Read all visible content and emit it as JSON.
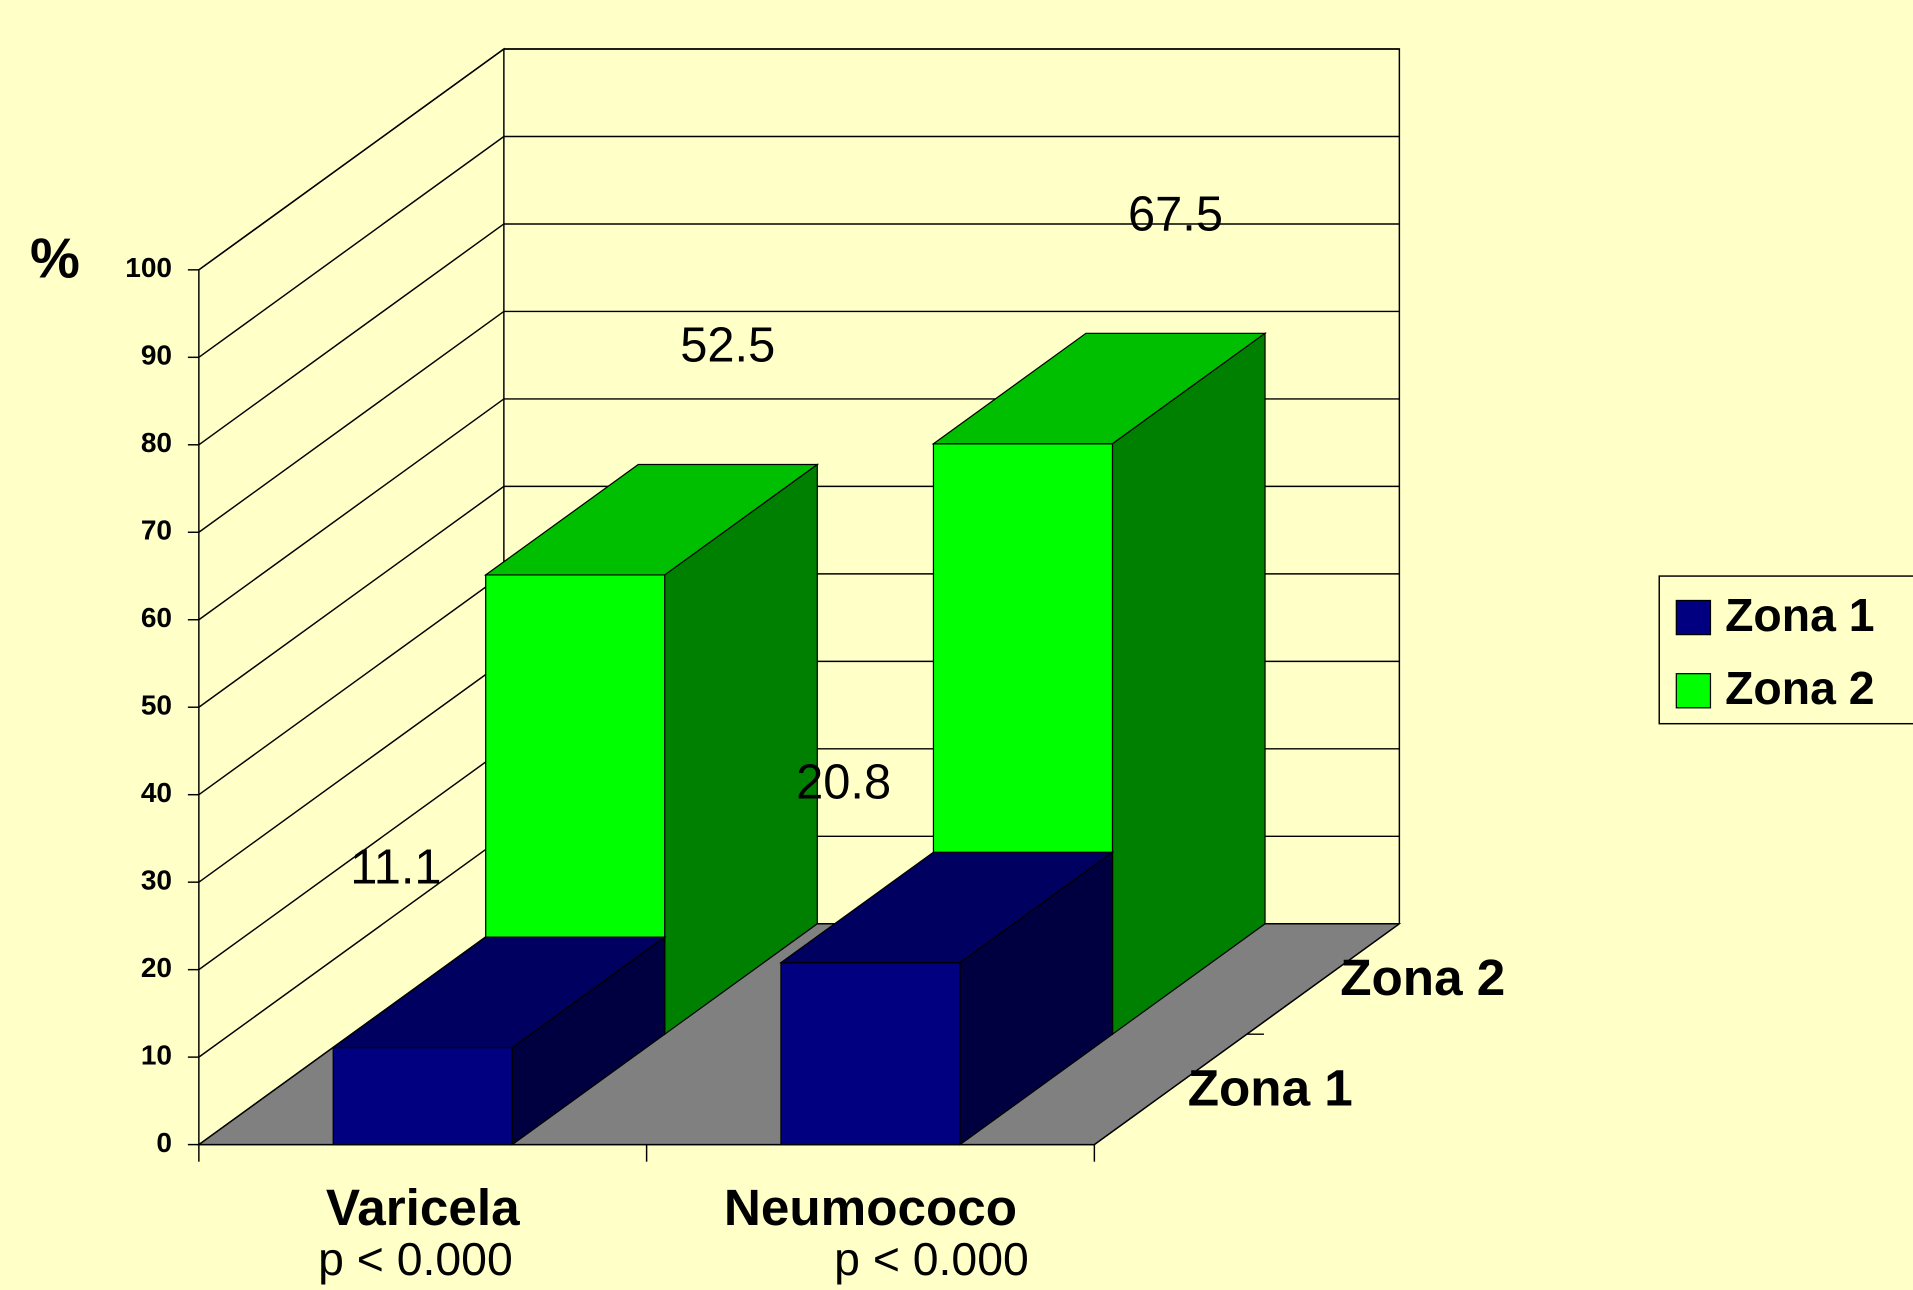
{
  "chart_data": {
    "type": "bar3d",
    "ylabel": "%",
    "categories": [
      "Varicela",
      "Neumococo"
    ],
    "category_notes": [
      "p < 0.000",
      "p < 0.000"
    ],
    "series": [
      {
        "name": "Zona 1",
        "color": "#000080",
        "values": [
          11.1,
          20.8
        ]
      },
      {
        "name": "Zona 2",
        "color": "#00ff00",
        "values": [
          52.5,
          67.5
        ]
      }
    ],
    "ylim": [
      0,
      100
    ],
    "yticks": [
      0,
      10,
      20,
      30,
      40,
      50,
      60,
      70,
      80,
      90,
      100
    ],
    "grid": true,
    "legend": "right"
  }
}
